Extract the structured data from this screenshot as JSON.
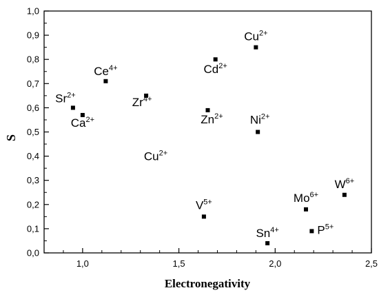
{
  "chart_data": {
    "type": "scatter",
    "title": "",
    "xlabel": "Electronegativity",
    "ylabel": "S",
    "xlim": [
      0.8,
      2.5
    ],
    "ylim": [
      0.0,
      1.0
    ],
    "xticks": [
      1.0,
      1.5,
      2.0,
      2.5
    ],
    "xtick_labels": [
      "1,0",
      "1,5",
      "2,0",
      "2,5"
    ],
    "yticks": [
      0.0,
      0.1,
      0.2,
      0.3,
      0.4,
      0.5,
      0.6,
      0.7,
      0.8,
      0.9,
      1.0
    ],
    "ytick_labels": [
      "0,0",
      "0,1",
      "0,2",
      "0,3",
      "0,4",
      "0,5",
      "0,6",
      "0,7",
      "0,8",
      "0,9",
      "1,0"
    ],
    "grid": false,
    "legend": "none",
    "marker_color": "#000000",
    "points": [
      {
        "x": 0.95,
        "y": 0.6,
        "ion": "Sr",
        "charge": "2+"
      },
      {
        "x": 1.0,
        "y": 0.57,
        "ion": "Ca",
        "charge": "2+"
      },
      {
        "x": 1.12,
        "y": 0.71,
        "ion": "Ce",
        "charge": "4+"
      },
      {
        "x": 1.33,
        "y": 0.65,
        "ion": "Zr",
        "charge": "4+"
      },
      {
        "x": 1.63,
        "y": 0.15,
        "ion": "V",
        "charge": "5+"
      },
      {
        "x": 1.65,
        "y": 0.59,
        "ion": "Zn",
        "charge": "2+"
      },
      {
        "x": 1.69,
        "y": 0.8,
        "ion": "Cd",
        "charge": "2+"
      },
      {
        "x": 1.9,
        "y": 0.85,
        "ion": "Cu",
        "charge": "2+"
      },
      {
        "x": 1.91,
        "y": 0.5,
        "ion": "Ni",
        "charge": "2+"
      },
      {
        "x": 1.96,
        "y": 0.04,
        "ion": "Sn",
        "charge": "4+"
      },
      {
        "x": 2.16,
        "y": 0.18,
        "ion": "Mo",
        "charge": "6+"
      },
      {
        "x": 2.19,
        "y": 0.09,
        "ion": "P",
        "charge": "5+"
      },
      {
        "x": 2.36,
        "y": 0.24,
        "ion": "W",
        "charge": "6+"
      }
    ],
    "annotations": [
      {
        "text": "Cu",
        "charge": "2+",
        "x": 1.38,
        "y": 0.4
      }
    ]
  }
}
